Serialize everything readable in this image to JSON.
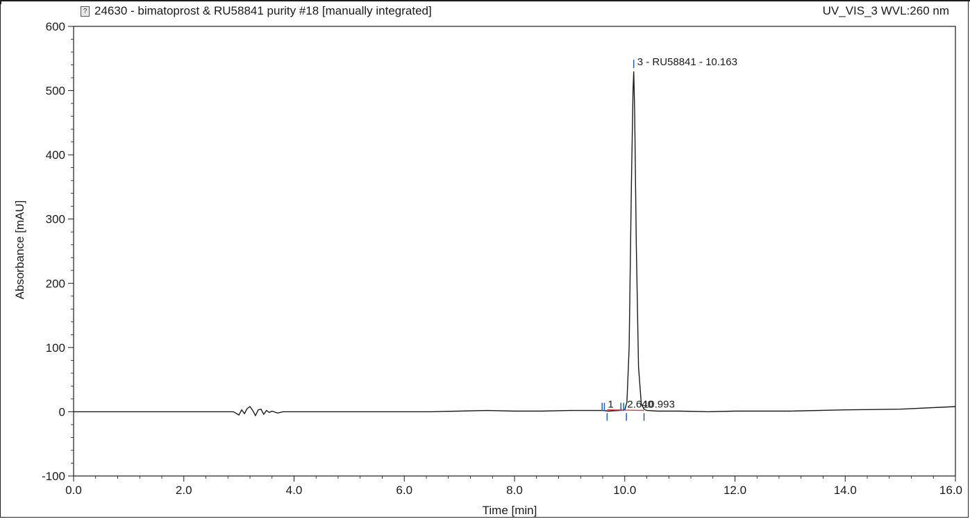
{
  "header": {
    "title": "24630 - bimatoprost & RU58841 purity #18 [manually integrated]",
    "channel": "UV_VIS_3 WVL:260 nm"
  },
  "colors": {
    "trace": "#1a1a1a",
    "peak_marker": "#1f5fbf",
    "baseline": "#e03030"
  },
  "chart_data": {
    "type": "line",
    "title": "24630 - bimatoprost & RU58841 purity #18 [manually integrated]",
    "xlabel": "Time [min]",
    "ylabel": "Absorbance [mAU]",
    "xlim": [
      0.0,
      16.0
    ],
    "ylim": [
      -100,
      600
    ],
    "x_ticks": [
      "0.0",
      "2.0",
      "4.0",
      "6.0",
      "8.0",
      "10.0",
      "12.0",
      "14.0",
      "16.0"
    ],
    "y_ticks": [
      "-100",
      "0",
      "100",
      "200",
      "300",
      "400",
      "500",
      "600"
    ],
    "grid": false,
    "series": [
      {
        "x": [
          0.0,
          1.0,
          2.0,
          2.9,
          3.0,
          3.05,
          3.1,
          3.15,
          3.2,
          3.25,
          3.3,
          3.35,
          3.4,
          3.45,
          3.5,
          3.55,
          3.6,
          3.7,
          3.8,
          4.5,
          5.5,
          6.5,
          7.0,
          7.5,
          8.0,
          8.5,
          9.0,
          9.5,
          9.6,
          9.7,
          9.9,
          10.0,
          10.04,
          10.08,
          10.12,
          10.15,
          10.163,
          10.18,
          10.21,
          10.25,
          10.3,
          10.35,
          10.4,
          10.6,
          11.0,
          11.5,
          12.0,
          13.0,
          14.0,
          15.0,
          16.0
        ],
        "y": [
          0,
          0,
          0,
          0,
          -5,
          3,
          -3,
          5,
          8,
          2,
          -6,
          3,
          4,
          -4,
          2,
          -1,
          1,
          -2,
          0,
          0,
          0,
          0,
          1,
          2,
          1,
          1,
          2,
          2,
          2,
          1,
          2,
          3,
          15,
          100,
          350,
          500,
          530,
          470,
          260,
          70,
          12,
          4,
          2,
          1,
          1,
          0,
          1,
          1,
          3,
          4,
          8
        ]
      }
    ],
    "annotations": [
      {
        "text": "3 - RU58841 - 10.163",
        "x": 10.163,
        "y": 530
      },
      {
        "text": "1",
        "x": 9.68,
        "y": 4
      },
      {
        "text": "2.640",
        "x": 10.02,
        "y": 4
      },
      {
        "text": "10.993",
        "x": 10.33,
        "y": 4
      }
    ],
    "peak_markers_top": [
      9.59,
      9.63,
      9.93,
      9.98,
      10.163
    ],
    "peak_markers_bottom": [
      9.68,
      10.03,
      10.35
    ],
    "integration_baseline": [
      [
        9.68,
        3
      ],
      [
        10.35,
        2
      ]
    ]
  }
}
